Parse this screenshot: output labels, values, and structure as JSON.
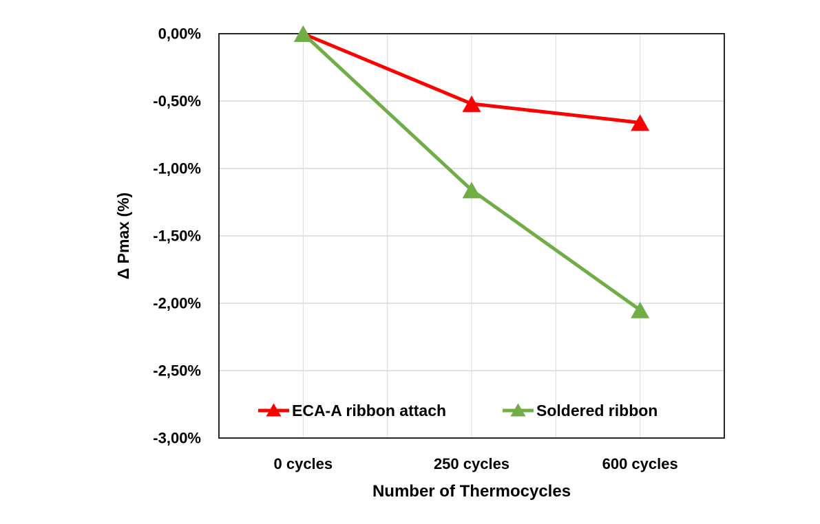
{
  "chart_data": {
    "type": "line",
    "title": "",
    "xlabel": "Number of Thermocycles",
    "ylabel": "Δ Pmax (%)",
    "categories": [
      "0 cycles",
      "250 cycles",
      "600 cycles"
    ],
    "series": [
      {
        "name": "ECA-A ribbon attach",
        "color": "#FF0000",
        "marker": "triangle",
        "values": [
          0.0,
          -0.52,
          -0.66
        ]
      },
      {
        "name": "Soldered ribbon",
        "color": "#70AD47",
        "marker": "triangle",
        "values": [
          0.0,
          -1.16,
          -2.05
        ]
      }
    ],
    "ylim": [
      -3.0,
      0.0
    ],
    "y_tick_step": 0.5,
    "y_tick_labels": [
      "0,00%",
      "-0,50%",
      "-1,00%",
      "-1,50%",
      "-2,00%",
      "-2,50%",
      "-3,00%"
    ],
    "grid": {
      "horizontal": true,
      "vertical": true,
      "color": "#D9D9D9"
    },
    "axis_color": "#262626",
    "legend_position": "inside-bottom"
  }
}
